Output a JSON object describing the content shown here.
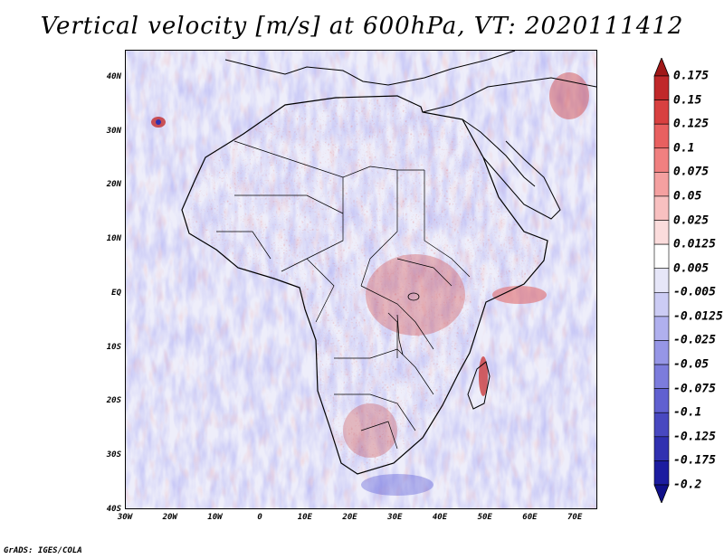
{
  "title": "Vertical velocity [m/s] at 600hPa, VT: 2020111412",
  "credit": "GrADS: IGES/COLA",
  "map": {
    "lon_range": [
      -30,
      75
    ],
    "lat_range": [
      -40,
      45
    ],
    "lat_labels": [
      "40N",
      "30N",
      "20N",
      "10N",
      "EQ",
      "10S",
      "20S",
      "30S",
      "40S"
    ],
    "lat_values": [
      40,
      30,
      20,
      10,
      0,
      -10,
      -20,
      -30,
      -40
    ],
    "lon_labels": [
      "30W",
      "20W",
      "10W",
      "0",
      "10E",
      "20E",
      "30E",
      "40E",
      "50E",
      "60E",
      "70E"
    ],
    "lon_values": [
      -30,
      -20,
      -10,
      0,
      10,
      20,
      30,
      40,
      50,
      60,
      70
    ]
  },
  "colorbar": {
    "levels": [
      "0.175",
      "0.15",
      "0.125",
      "0.1",
      "0.075",
      "0.05",
      "0.025",
      "0.0125",
      "0.005",
      "-0.005",
      "-0.0125",
      "-0.025",
      "-0.05",
      "-0.075",
      "-0.1",
      "-0.125",
      "-0.175",
      "-0.2"
    ],
    "colors": [
      "#a01818",
      "#c0282a",
      "#d84040",
      "#e86060",
      "#f08080",
      "#f4a0a0",
      "#f8c0c0",
      "#fbdcdc",
      "#ffffff",
      "#e6e6f8",
      "#ccccf4",
      "#b0b0ee",
      "#9696e6",
      "#7c7cdc",
      "#6060d0",
      "#4848c0",
      "#3030b0",
      "#1c1ca0",
      "#10108a"
    ]
  }
}
